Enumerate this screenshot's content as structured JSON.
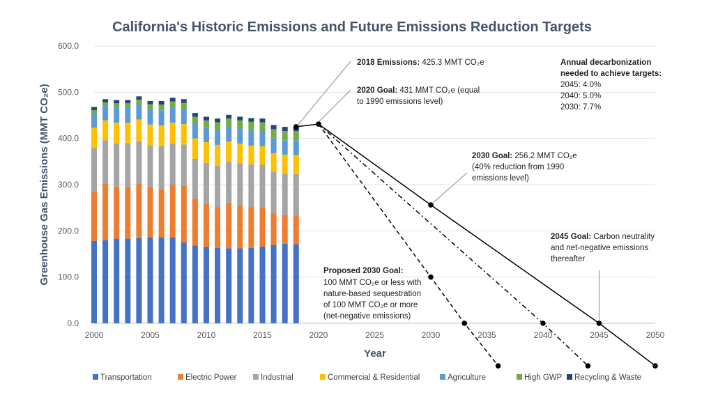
{
  "chart_data": {
    "type": "bar",
    "title": "California's Historic Emissions and Future Emissions Reduction Targets",
    "xlabel": "Year",
    "ylabel": "Greenhouse Gas Emissions (MMT CO₂e)",
    "ylim": [
      0,
      600
    ],
    "xlim": [
      2000,
      2050
    ],
    "y_ticks": [
      "0.0",
      "100.0",
      "200.0",
      "300.0",
      "400.0",
      "500.0",
      "600.0"
    ],
    "x_ticks": [
      "2000",
      "2005",
      "2010",
      "2015",
      "2020",
      "2025",
      "2030",
      "2035",
      "2040",
      "2045",
      "2050"
    ],
    "grid": true,
    "legend_position": "bottom",
    "stacked": true,
    "categories": [
      2000,
      2001,
      2002,
      2003,
      2004,
      2005,
      2006,
      2007,
      2008,
      2009,
      2010,
      2011,
      2012,
      2013,
      2014,
      2015,
      2016,
      2017,
      2018
    ],
    "series": [
      {
        "name": "Transportation",
        "color": "#4472c4",
        "values": [
          178,
          180,
          183,
          183,
          185,
          186,
          186,
          186,
          175,
          168,
          165,
          163,
          162,
          162,
          163,
          166,
          170,
          172,
          171
        ]
      },
      {
        "name": "Electric Power",
        "color": "#ed7d31",
        "values": [
          106,
          122,
          113,
          112,
          117,
          108,
          104,
          114,
          122,
          102,
          93,
          88,
          99,
          92,
          88,
          84,
          68,
          62,
          63
        ]
      },
      {
        "name": "Industrial",
        "color": "#a5a5a5",
        "values": [
          95,
          94,
          93,
          94,
          92,
          91,
          93,
          89,
          90,
          86,
          89,
          90,
          89,
          92,
          93,
          93,
          90,
          90,
          89
        ]
      },
      {
        "name": "Commercial & Residential",
        "color": "#ffc000",
        "values": [
          44,
          43,
          45,
          45,
          47,
          45,
          45,
          45,
          44,
          44,
          45,
          45,
          43,
          43,
          40,
          40,
          40,
          41,
          41
        ]
      },
      {
        "name": "Agriculture",
        "color": "#5b9bd5",
        "values": [
          30,
          31,
          33,
          33,
          33,
          33,
          33,
          33,
          32,
          32,
          32,
          33,
          33,
          33,
          34,
          33,
          32,
          31,
          32
        ]
      },
      {
        "name": "High GWP",
        "color": "#70ad47",
        "values": [
          8,
          8,
          9,
          9,
          10,
          11,
          12,
          13,
          14,
          15,
          15,
          16,
          17,
          17,
          18,
          19,
          20,
          20,
          20
        ]
      },
      {
        "name": "Recycling & Waste",
        "color": "#264478",
        "values": [
          7,
          7,
          7,
          7,
          7,
          7,
          8,
          8,
          8,
          8,
          8,
          8,
          8,
          8,
          8,
          8,
          9,
          9,
          9
        ]
      }
    ],
    "targets": {
      "start": {
        "x": 2018,
        "y": 425.3
      },
      "goal_2020": {
        "x": 2020,
        "y": 431
      },
      "lines": [
        {
          "name": "2030 Goal",
          "style": "solid",
          "points": [
            {
              "x": 2030,
              "y": 256.2
            },
            {
              "x": 2045,
              "y": 0
            },
            {
              "x": 2050,
              "y": -92
            }
          ]
        },
        {
          "name": "Dash-dot path",
          "style": "dashdot",
          "points": [
            {
              "x": 2040,
              "y": 0
            },
            {
              "x": 2044,
              "y": -92
            }
          ]
        },
        {
          "name": "Proposed 2030 Goal",
          "style": "dashed",
          "points": [
            {
              "x": 2030,
              "y": 100
            },
            {
              "x": 2033,
              "y": 0
            },
            {
              "x": 2036,
              "y": -92
            }
          ]
        }
      ]
    },
    "annotations": {
      "emissions_2018": {
        "label": "2018 Emissions:",
        "text": " 425.3 MMT CO₂e"
      },
      "goal_2020": {
        "label": "2020 Goal:",
        "line1": " 431 MMT CO₂e (equal",
        "line2": "to 1990 emissions level)"
      },
      "goal_2030": {
        "label": "2030 Goal:",
        "line1": " 256.2 MMT CO₂e",
        "line2": "(40% reduction from 1990",
        "line3": "emissions level)"
      },
      "goal_2045": {
        "label": "2045 Goal:",
        "line1": " Carbon neutrality",
        "line2": "and net-negative emissions",
        "line3": "thereafter"
      },
      "proposed_2030": {
        "label": "Proposed 2030 Goal:",
        "line1": "100 MMT CO₂e or less with",
        "line2": "nature-based sequestration",
        "line3": "of 100 MMT CO₂e or more",
        "line4": "(net-negative emissions)"
      },
      "decarbonization": {
        "line1": "Annual decarbonization",
        "line2": "needed to achieve targets:",
        "line3": "2045: 4.0%",
        "line4": "2040: 5.0%",
        "line5": "2030: 7.7%"
      }
    }
  }
}
